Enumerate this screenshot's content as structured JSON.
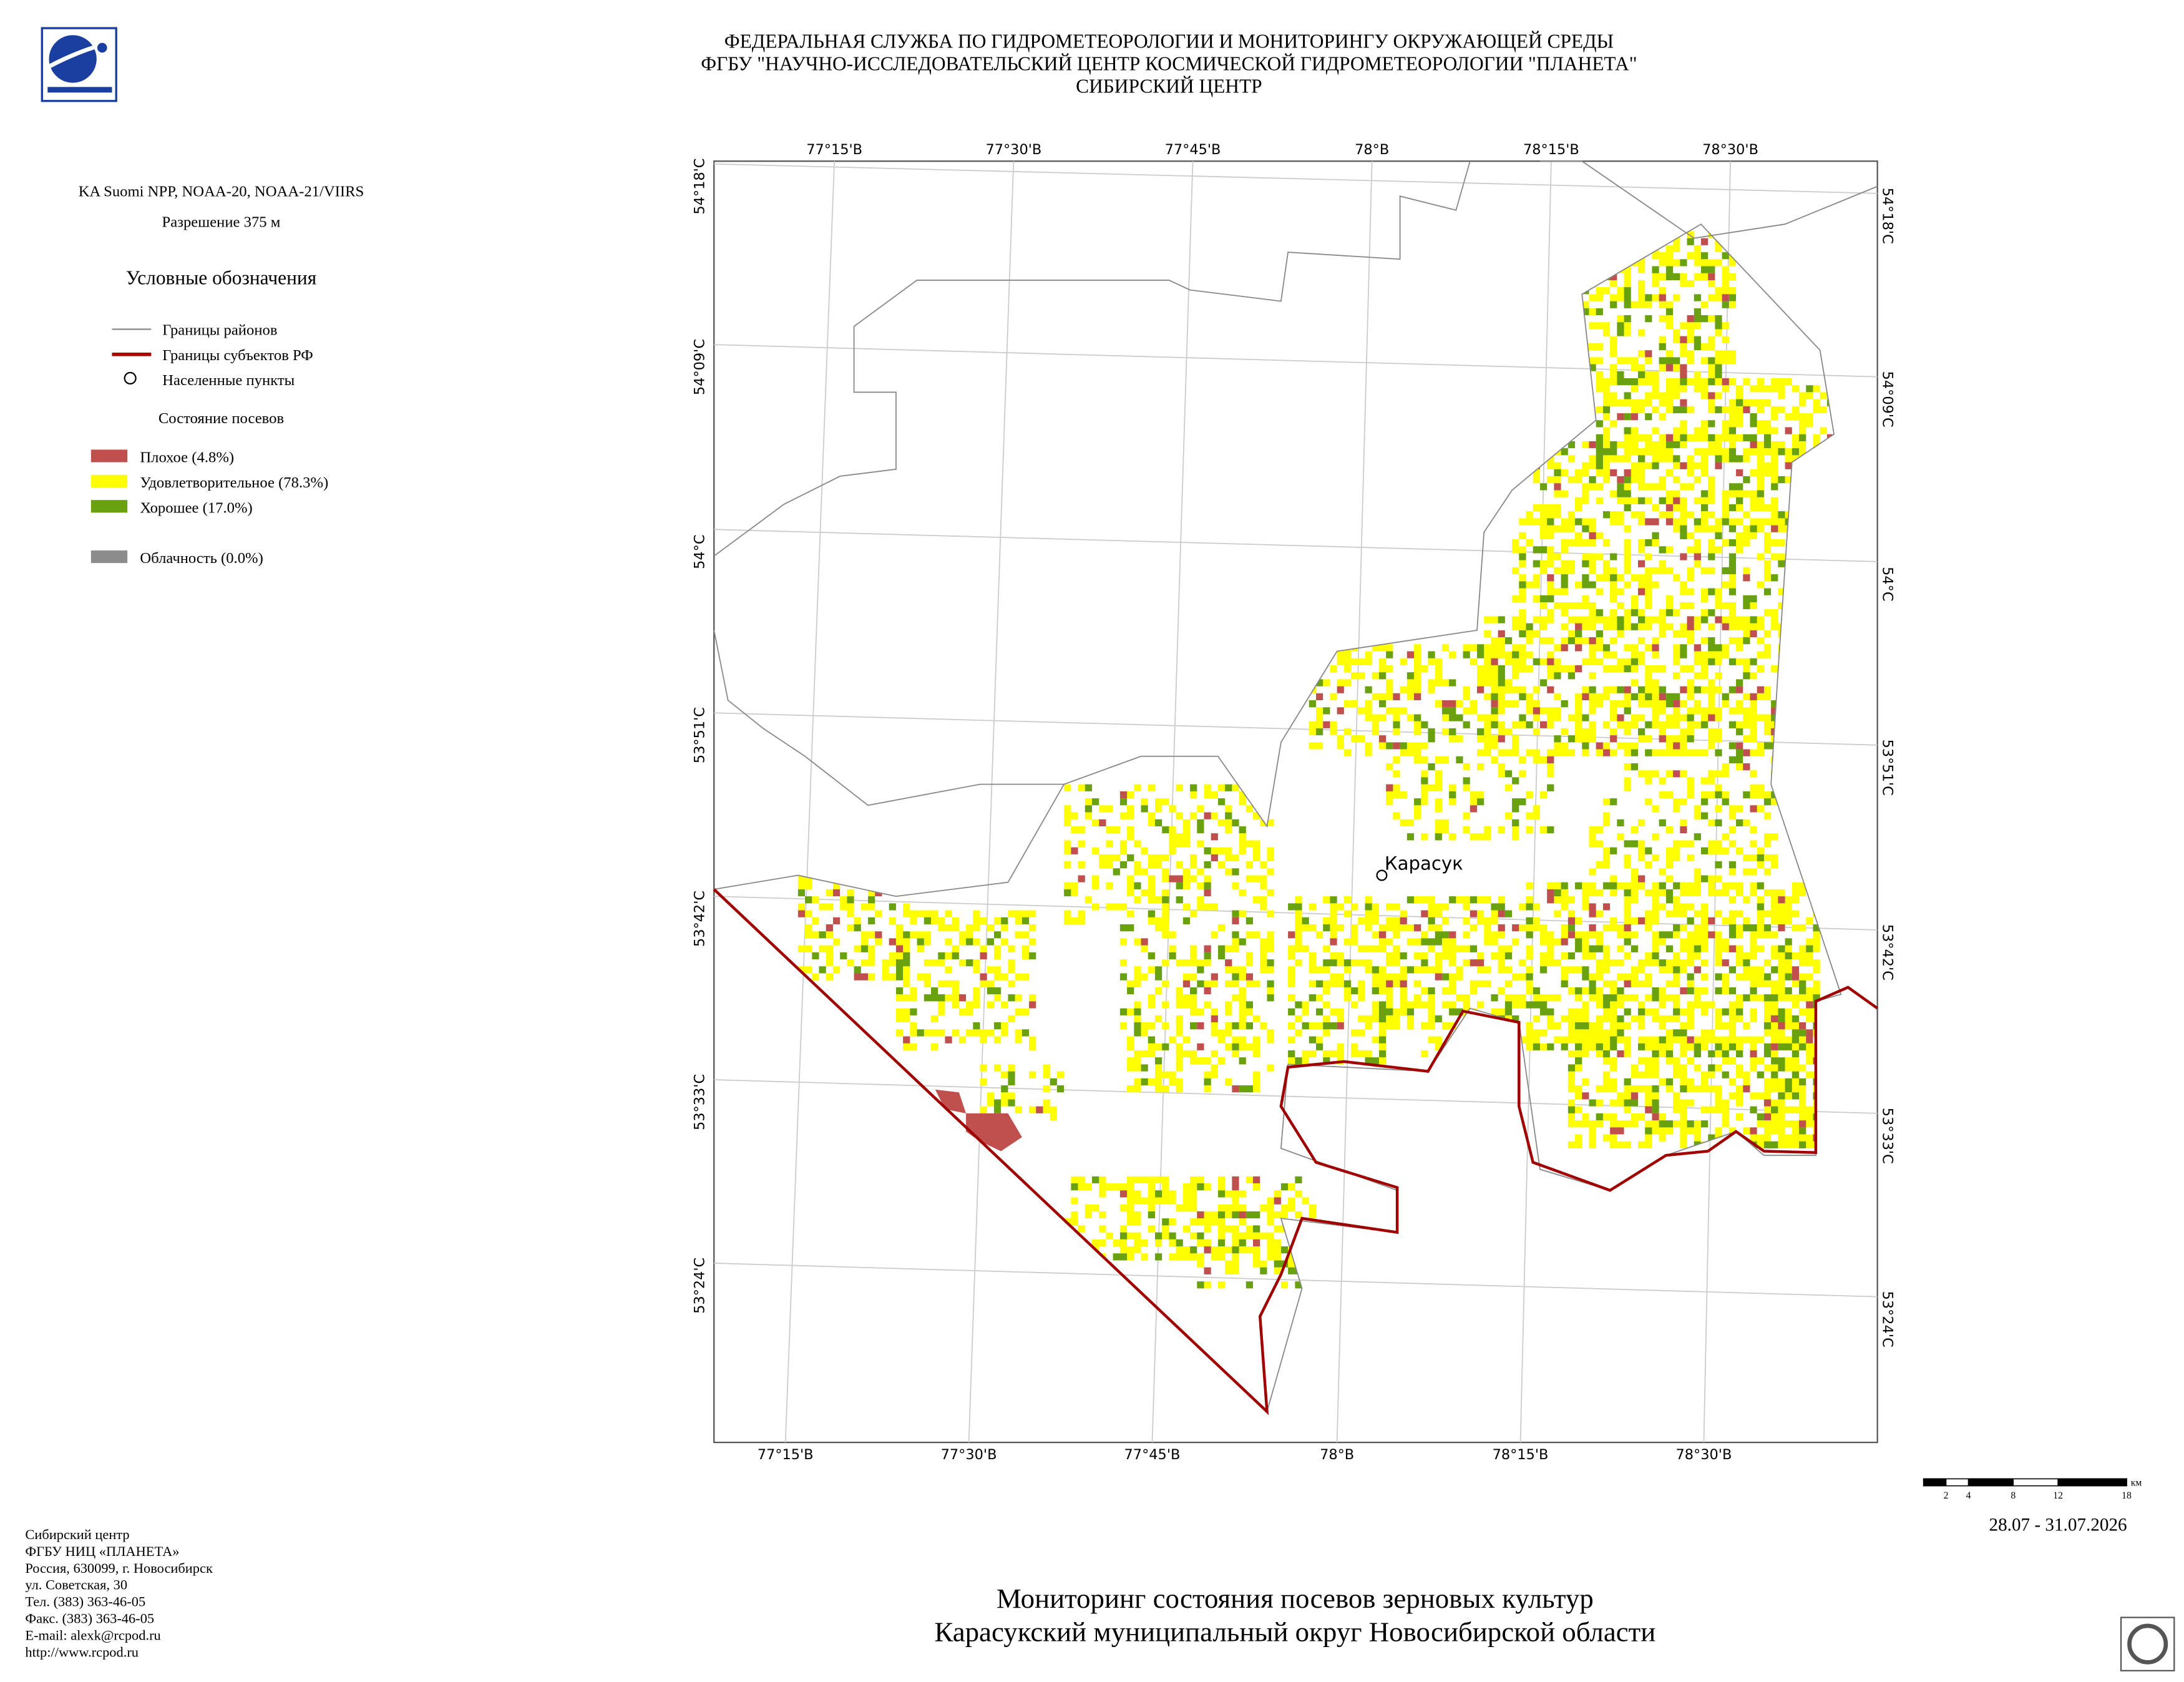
{
  "header": {
    "lines": [
      "ФЕДЕРАЛЬНАЯ СЛУЖБА ПО ГИДРОМЕТЕОРОЛОГИИ И МОНИТОРИНГУ ОКРУЖАЮЩЕЙ СРЕДЫ",
      "ФГБУ \"НАУЧНО-ИССЛЕДОВАТЕЛЬСКИЙ ЦЕНТР КОСМИЧЕСКОЙ ГИДРОМЕТЕОРОЛОГИИ \"ПЛАНЕТА\"",
      "СИБИРСКИЙ ЦЕНТР"
    ]
  },
  "sidebar": {
    "satellite": "KA Suomi NPP, NOAA-20, NOAA-21/VIIRS",
    "resolution": "Разрешение 375 м",
    "legend_title": "Условные обозначения",
    "boundaries": [
      "Границы районов",
      "Границы субъектов РФ",
      "Населенные пункты"
    ],
    "crop_title": "Состояние посевов",
    "crop_items": [
      "Плохое (4.8%)",
      "Удовлетворительное (78.3%)",
      "Хорошее (17.0%)"
    ],
    "cloud": "Облачность (0.0%)"
  },
  "map": {
    "lon_labels": [
      "77°15'В",
      "77°30'В",
      "77°45'В",
      "78°В",
      "78°15'В",
      "78°30'В"
    ],
    "lat_labels": [
      "54°18'С",
      "54°09'С",
      "54°С",
      "53°51'С",
      "53°42'С",
      "53°33'С",
      "53°24'С"
    ],
    "city": "Карасук"
  },
  "scale_bar": {
    "ticks": [
      "2",
      "4",
      "8",
      "12",
      "18"
    ],
    "unit": "км"
  },
  "date": "28.07 - 31.07.2026",
  "footer": {
    "title_lines": [
      "Мониторинг состояния посевов зерновых культур",
      "Карасукский муниципальный округ Новосибирской области"
    ]
  },
  "contacts": {
    "lines": [
      "Сибирский центр",
      "ФГБУ НИЦ «ПЛАНЕТА»",
      "Россия, 630099, г. Новосибирск",
      "ул. Советская, 30",
      "Тел. (383) 363-46-05",
      "Факс. (383) 363-46-05",
      "E-mail: alexk@rcpod.ru",
      "http://www.rcpod.ru"
    ]
  }
}
